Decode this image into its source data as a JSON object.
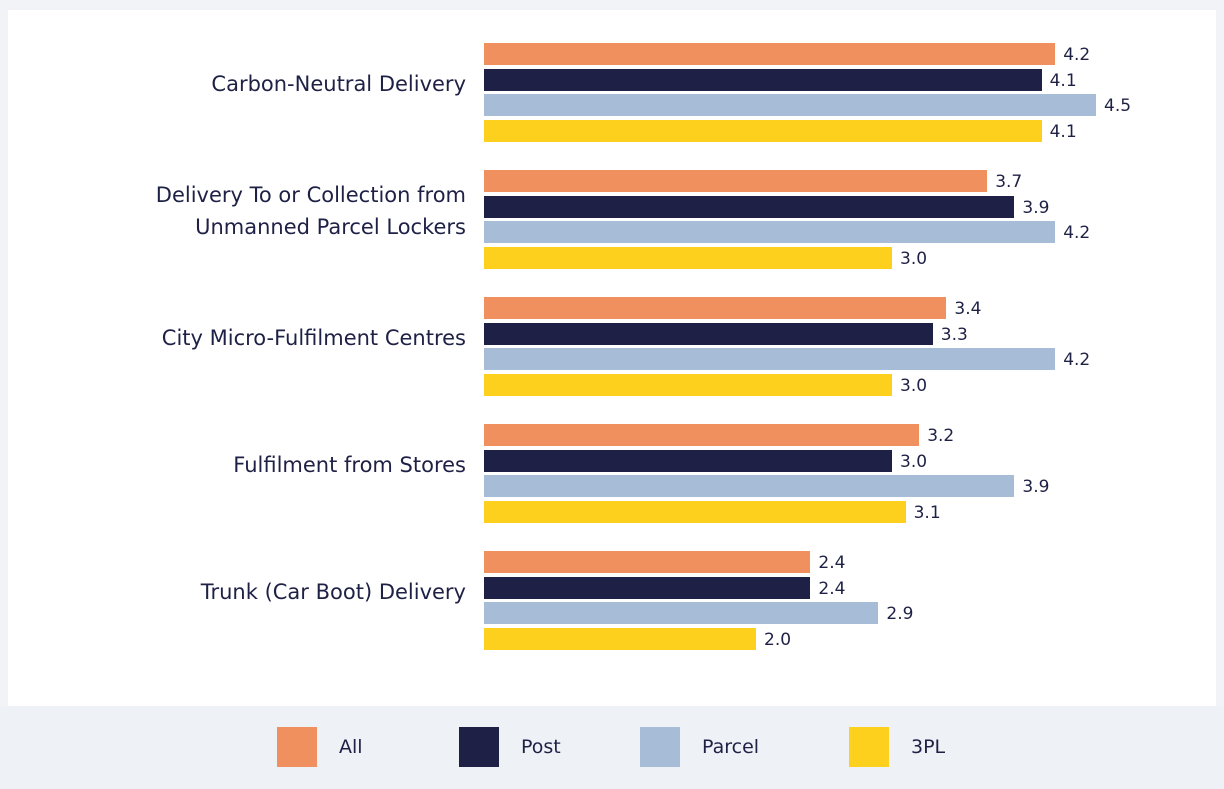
{
  "chart_data": {
    "type": "bar",
    "orientation": "horizontal",
    "categories": [
      "Carbon-Neutral Delivery",
      "Delivery To or Collection from\nUnmanned Parcel Lockers",
      "City Micro-Fulfilment Centres",
      "Fulfilment from Stores",
      "Trunk (Car Boot) Delivery"
    ],
    "series": [
      {
        "name": "All",
        "color": "#f0905e",
        "values": [
          4.2,
          3.7,
          3.4,
          3.2,
          2.4
        ],
        "value_labels": [
          "4.2",
          "3.7",
          "3.4",
          "3.2",
          "2.4"
        ]
      },
      {
        "name": "Post",
        "color": "#1e2145",
        "values": [
          4.1,
          3.9,
          3.3,
          3.0,
          2.4
        ],
        "value_labels": [
          "4.1",
          "3.9",
          "3.3",
          "3.0",
          "2.4"
        ]
      },
      {
        "name": "Parcel",
        "color": "#a7bcd6",
        "values": [
          4.5,
          4.2,
          4.2,
          3.9,
          2.9
        ],
        "value_labels": [
          "4.5",
          "4.2",
          "4.2",
          "3.9",
          "2.9"
        ]
      },
      {
        "name": "3PL",
        "color": "#fdd01e",
        "values": [
          4.1,
          3.0,
          3.0,
          3.1,
          2.0
        ],
        "value_labels": [
          "4.1",
          "3.0",
          "3.0",
          "3.1",
          "2.0"
        ]
      }
    ],
    "legend": "bottom"
  }
}
